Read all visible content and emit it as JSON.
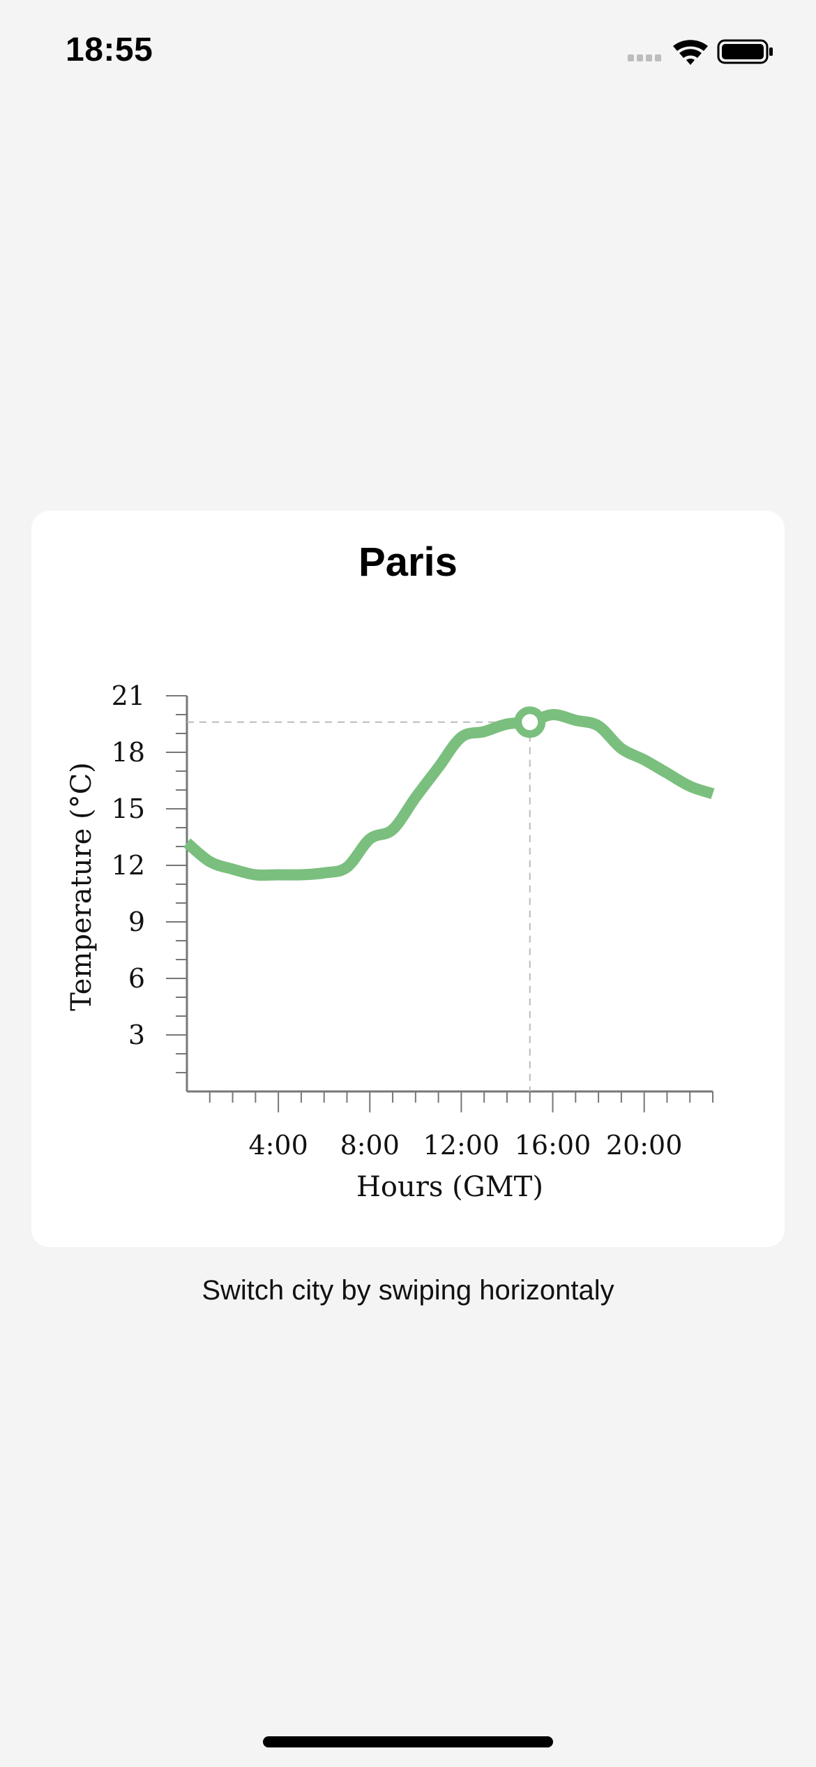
{
  "status_bar": {
    "time": "18:55",
    "icons": [
      "cellular-signal-icon",
      "wifi-icon",
      "battery-icon"
    ]
  },
  "card": {
    "title": "Paris"
  },
  "chart_data": {
    "type": "line",
    "xlabel": "Hours (GMT)",
    "ylabel": "Temperature (°C)",
    "x_tick_labels": [
      "4:00",
      "8:00",
      "12:00",
      "16:00",
      "20:00"
    ],
    "x_ticks": [
      4,
      8,
      12,
      16,
      20
    ],
    "y_tick_labels": [
      "3",
      "6",
      "9",
      "12",
      "15",
      "18",
      "21"
    ],
    "y_ticks": [
      3,
      6,
      9,
      12,
      15,
      18,
      21
    ],
    "xlim": [
      0,
      23
    ],
    "ylim": [
      0,
      21
    ],
    "grid": false,
    "series": [
      {
        "color": "#7bbf7e",
        "x": [
          0,
          1,
          2,
          3,
          4,
          5,
          6,
          7,
          8,
          9,
          10,
          11,
          12,
          13,
          14,
          15,
          16,
          17,
          18,
          19,
          20,
          21,
          22,
          23
        ],
        "values": [
          13.2,
          12.2,
          11.8,
          11.5,
          11.5,
          11.5,
          11.6,
          11.9,
          13.4,
          13.9,
          15.6,
          17.2,
          18.8,
          19.1,
          19.5,
          19.6,
          20.0,
          19.7,
          19.4,
          18.2,
          17.6,
          16.9,
          16.2,
          15.8
        ]
      }
    ],
    "highlight": {
      "x": 15,
      "y": 19.6,
      "guide_color": "#bbbbbb"
    }
  },
  "hint": {
    "text": "Switch city by swiping horizontaly"
  }
}
